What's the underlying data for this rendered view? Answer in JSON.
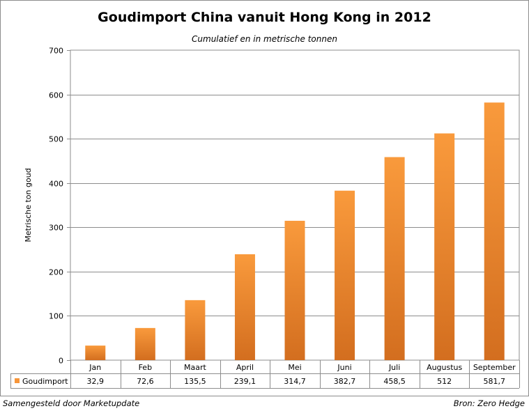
{
  "chart_data": {
    "type": "bar",
    "title": "Goudimport China vanuit Hong Kong in 2012",
    "subtitle": "Cumulatief en in metrische tonnen",
    "ylabel": "Metrische ton goud",
    "xlabel": "",
    "ylim": [
      0,
      700
    ],
    "yticks": [
      0,
      100,
      200,
      300,
      400,
      500,
      600,
      700
    ],
    "grid": true,
    "categories": [
      "Jan",
      "Feb",
      "Maart",
      "April",
      "Mei",
      "Juni",
      "Juli",
      "Augustus",
      "September"
    ],
    "series": [
      {
        "name": "Goudimport",
        "values": [
          32.9,
          72.6,
          135.5,
          239.1,
          314.7,
          382.7,
          458.5,
          512,
          581.7
        ],
        "value_labels": [
          "32,9",
          "72,6",
          "135,5",
          "239,1",
          "314,7",
          "382,7",
          "458,5",
          "512",
          "581,7"
        ],
        "color": "#F7963A"
      }
    ],
    "data_table": true
  },
  "footer": {
    "left": "Samengesteld door Marketupdate",
    "right": "Bron: Zero Hedge"
  }
}
